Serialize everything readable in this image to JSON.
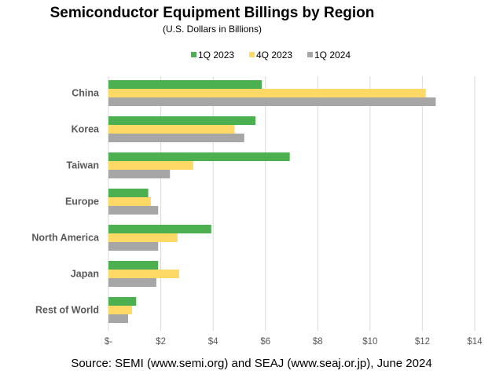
{
  "chart_data": {
    "type": "bar",
    "orientation": "horizontal",
    "title": "Semiconductor Equipment Billings by Region",
    "subtitle": "(U.S. Dollars in Billions)",
    "categories": [
      "China",
      "Korea",
      "Taiwan",
      "Europe",
      "North America",
      "Japan",
      "Rest of World"
    ],
    "series": [
      {
        "name": "1Q 2023",
        "color": "#4caf50",
        "values": [
          5.86,
          5.62,
          6.93,
          1.52,
          3.93,
          1.9,
          1.06
        ]
      },
      {
        "name": "4Q 2023",
        "color": "#ffd966",
        "values": [
          12.13,
          4.82,
          3.24,
          1.62,
          2.64,
          2.7,
          0.9
        ]
      },
      {
        "name": "1Q 2024",
        "color": "#a6a6a6",
        "values": [
          12.51,
          5.19,
          2.35,
          1.9,
          1.9,
          1.83,
          0.75
        ]
      }
    ],
    "xlim": [
      0,
      14
    ],
    "xticks": [
      0,
      2,
      4,
      6,
      8,
      10,
      12,
      14
    ],
    "xtick_labels": [
      "$-",
      "$2",
      "$4",
      "$6",
      "$8",
      "$10",
      "$12",
      "$14"
    ],
    "grid": true,
    "legend_position": "top"
  },
  "footer": {
    "source": "Source: SEMI (www.semi.org) and SEAJ (www.seaj.or.jp), June 2024"
  },
  "colors": {
    "gridline": "#d9d9d9",
    "axis_text": "#595959"
  }
}
